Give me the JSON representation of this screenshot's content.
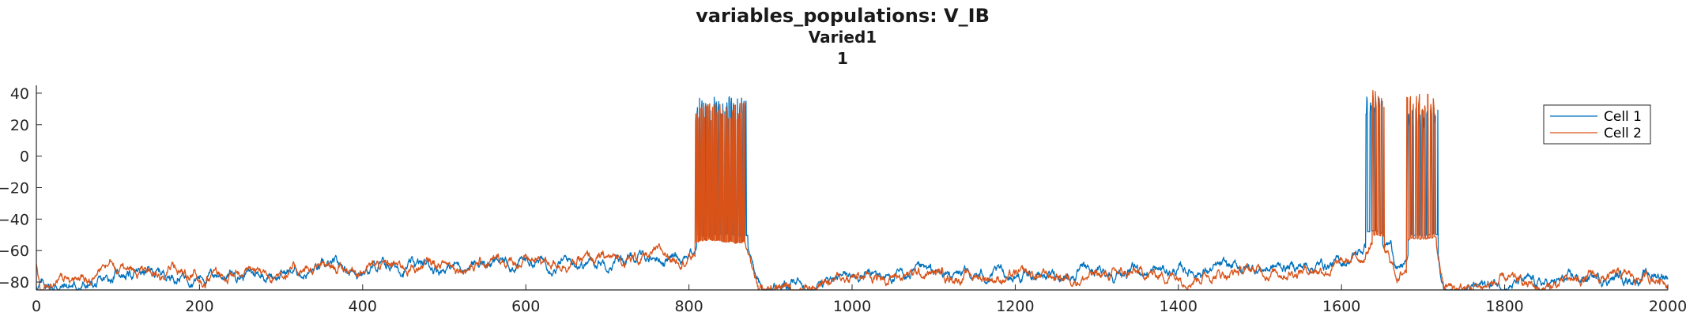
{
  "title_lines": [
    "variables_populations: V_IB",
    "Varied1",
    "1"
  ],
  "chart_data": {
    "type": "line",
    "title": "variables_populations: V_IB",
    "subtitle": [
      "Varied1",
      "1"
    ],
    "xlabel": "",
    "ylabel": "",
    "xlim": [
      0,
      2000
    ],
    "ylim": [
      -85,
      45
    ],
    "xticks": [
      0,
      200,
      400,
      600,
      800,
      1000,
      1200,
      1400,
      1600,
      1800,
      2000
    ],
    "yticks": [
      40,
      20,
      0,
      -20,
      -40,
      -60,
      -80
    ],
    "grid": false,
    "legend_position": "top-right",
    "series": [
      {
        "name": "Cell 1",
        "color": "#0072BD",
        "baseline": [
          [
            0,
            -82
          ],
          [
            80,
            -83
          ],
          [
            100,
            -74
          ],
          [
            200,
            -75
          ],
          [
            300,
            -74
          ],
          [
            400,
            -71
          ],
          [
            500,
            -70
          ],
          [
            600,
            -67
          ],
          [
            700,
            -66
          ],
          [
            790,
            -63
          ],
          [
            805,
            -60
          ],
          [
            820,
            -52
          ],
          [
            850,
            -48
          ],
          [
            865,
            -50
          ],
          [
            870,
            -52
          ],
          [
            880,
            -70
          ],
          [
            890,
            -86
          ],
          [
            900,
            -84
          ],
          [
            1000,
            -77
          ],
          [
            1100,
            -76
          ],
          [
            1200,
            -76
          ],
          [
            1300,
            -74
          ],
          [
            1400,
            -73
          ],
          [
            1500,
            -71
          ],
          [
            1600,
            -68
          ],
          [
            1625,
            -60
          ],
          [
            1640,
            -50
          ],
          [
            1660,
            -55
          ],
          [
            1670,
            -72
          ],
          [
            1685,
            -65
          ],
          [
            1700,
            -52
          ],
          [
            1715,
            -52
          ],
          [
            1725,
            -84
          ],
          [
            1750,
            -85
          ],
          [
            1800,
            -80
          ],
          [
            1850,
            -82
          ],
          [
            1900,
            -78
          ],
          [
            2000,
            -75
          ]
        ],
        "bursts": [
          {
            "start": 810,
            "end": 872,
            "count": 24,
            "peak": 38,
            "trough": -50
          },
          {
            "start": 1630,
            "end": 1650,
            "count": 4,
            "peak": 38,
            "trough": -48
          },
          {
            "start": 1682,
            "end": 1718,
            "count": 8,
            "peak": 30,
            "trough": -50
          }
        ]
      },
      {
        "name": "Cell 2",
        "color": "#D95319",
        "baseline": [
          [
            0,
            -70
          ],
          [
            5,
            -84
          ],
          [
            20,
            -80
          ],
          [
            60,
            -76
          ],
          [
            80,
            -72
          ],
          [
            90,
            -70
          ],
          [
            100,
            -73
          ],
          [
            200,
            -75
          ],
          [
            300,
            -73
          ],
          [
            400,
            -71
          ],
          [
            500,
            -69
          ],
          [
            600,
            -67
          ],
          [
            700,
            -66
          ],
          [
            790,
            -63
          ],
          [
            805,
            -62
          ],
          [
            820,
            -54
          ],
          [
            855,
            -52
          ],
          [
            865,
            -52
          ],
          [
            875,
            -62
          ],
          [
            885,
            -85
          ],
          [
            900,
            -84
          ],
          [
            1000,
            -77
          ],
          [
            1100,
            -75
          ],
          [
            1200,
            -77
          ],
          [
            1300,
            -76
          ],
          [
            1400,
            -75
          ],
          [
            1500,
            -73
          ],
          [
            1600,
            -70
          ],
          [
            1625,
            -64
          ],
          [
            1640,
            -52
          ],
          [
            1655,
            -60
          ],
          [
            1670,
            -77
          ],
          [
            1685,
            -68
          ],
          [
            1700,
            -54
          ],
          [
            1715,
            -54
          ],
          [
            1725,
            -83
          ],
          [
            1750,
            -85
          ],
          [
            1800,
            -80
          ],
          [
            1850,
            -84
          ],
          [
            1900,
            -78
          ],
          [
            2000,
            -77
          ]
        ],
        "bursts": [
          {
            "start": 808,
            "end": 868,
            "count": 32,
            "peak": 34,
            "trough": -54
          },
          {
            "start": 1638,
            "end": 1652,
            "count": 4,
            "peak": 42,
            "trough": -50
          },
          {
            "start": 1680,
            "end": 1716,
            "count": 10,
            "peak": 40,
            "trough": -52
          }
        ]
      }
    ]
  }
}
